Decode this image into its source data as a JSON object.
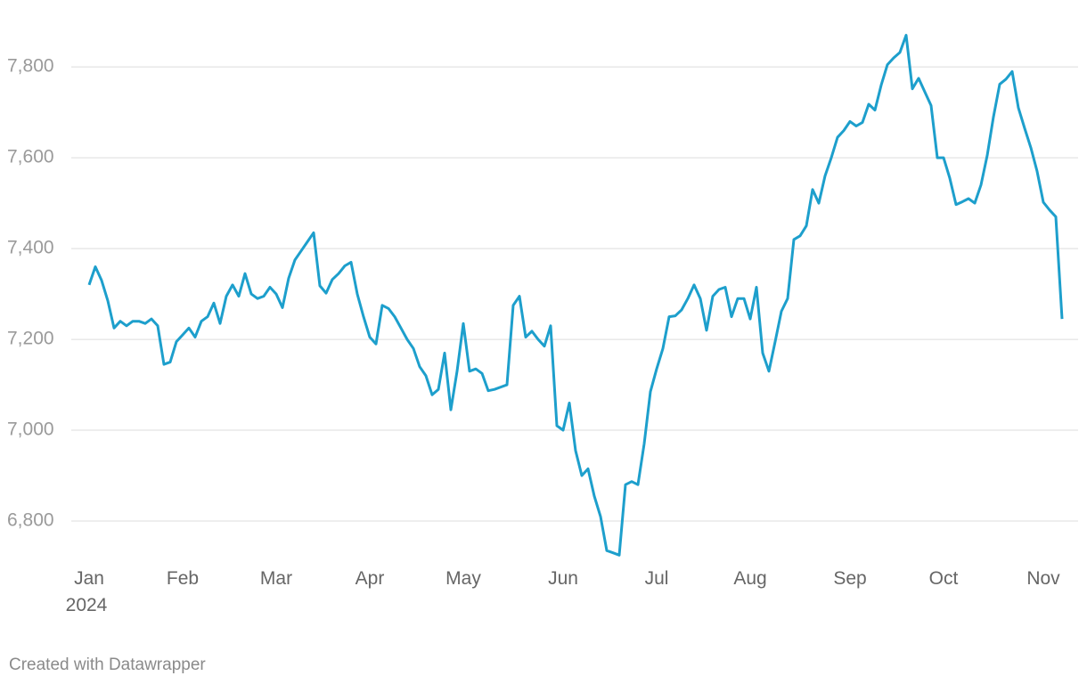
{
  "chart_data": {
    "type": "line",
    "categories": [
      "Jan",
      null,
      null,
      null,
      null,
      null,
      null,
      null,
      null,
      null,
      null,
      null,
      null,
      null,
      null,
      "Feb",
      null,
      null,
      null,
      null,
      null,
      null,
      null,
      null,
      null,
      null,
      null,
      null,
      null,
      null,
      "Mar",
      null,
      null,
      null,
      null,
      null,
      null,
      null,
      null,
      null,
      null,
      null,
      null,
      null,
      null,
      "Apr",
      null,
      null,
      null,
      null,
      null,
      null,
      null,
      null,
      null,
      null,
      null,
      null,
      null,
      null,
      "May",
      null,
      null,
      null,
      null,
      null,
      null,
      null,
      null,
      null,
      null,
      null,
      null,
      null,
      null,
      null,
      "Jun",
      null,
      null,
      null,
      null,
      null,
      null,
      null,
      null,
      null,
      null,
      null,
      null,
      null,
      null,
      "Jul",
      null,
      null,
      null,
      null,
      null,
      null,
      null,
      null,
      null,
      null,
      null,
      null,
      null,
      null,
      "Aug",
      null,
      null,
      null,
      null,
      null,
      null,
      null,
      null,
      null,
      null,
      null,
      null,
      null,
      null,
      null,
      "Sep",
      null,
      null,
      null,
      null,
      null,
      null,
      null,
      null,
      null,
      null,
      null,
      null,
      null,
      null,
      "Oct",
      null,
      null,
      null,
      null,
      null,
      null,
      null,
      null,
      null,
      null,
      null,
      null,
      null,
      null,
      null,
      "Nov",
      null,
      null,
      null
    ],
    "year_label": "2024",
    "values": [
      7320,
      7360,
      7330,
      7285,
      7225,
      7240,
      7230,
      7240,
      7240,
      7235,
      7245,
      7230,
      7145,
      7150,
      7195,
      7210,
      7225,
      7205,
      7240,
      7250,
      7280,
      7235,
      7295,
      7320,
      7295,
      7345,
      7300,
      7290,
      7295,
      7315,
      7300,
      7270,
      7335,
      7375,
      7395,
      7415,
      7435,
      7318,
      7302,
      7332,
      7345,
      7362,
      7370,
      7300,
      7250,
      7205,
      7190,
      7275,
      7268,
      7250,
      7225,
      7200,
      7180,
      7140,
      7120,
      7078,
      7090,
      7170,
      7045,
      7130,
      7235,
      7130,
      7135,
      7125,
      7087,
      7090,
      7095,
      7100,
      7275,
      7295,
      7205,
      7218,
      7200,
      7185,
      7230,
      7010,
      7000,
      7060,
      6955,
      6900,
      6915,
      6855,
      6810,
      6735,
      6730,
      6725,
      6880,
      6887,
      6880,
      6970,
      7085,
      7135,
      7180,
      7250,
      7252,
      7265,
      7290,
      7320,
      7290,
      7220,
      7295,
      7310,
      7315,
      7250,
      7290,
      7290,
      7245,
      7315,
      7170,
      7130,
      7195,
      7262,
      7290,
      7420,
      7428,
      7450,
      7530,
      7500,
      7560,
      7600,
      7645,
      7660,
      7680,
      7670,
      7678,
      7718,
      7705,
      7760,
      7805,
      7820,
      7832,
      7870,
      7752,
      7775,
      7745,
      7715,
      7600,
      7600,
      7555,
      7497,
      7503,
      7510,
      7500,
      7540,
      7605,
      7690,
      7762,
      7773,
      7790,
      7710,
      7665,
      7622,
      7570,
      7502,
      7485,
      7470,
      7245
    ],
    "color": "#1d9fcc",
    "ylim": [
      6700,
      7920
    ],
    "yticks": [
      {
        "value": 6800,
        "label": "6,800"
      },
      {
        "value": 7000,
        "label": "7,000"
      },
      {
        "value": 7200,
        "label": "7,200"
      },
      {
        "value": 7400,
        "label": "7,400"
      },
      {
        "value": 7600,
        "label": "7,600"
      },
      {
        "value": 7800,
        "label": "7,800"
      }
    ],
    "grid": true,
    "footer": "Created with Datawrapper"
  }
}
